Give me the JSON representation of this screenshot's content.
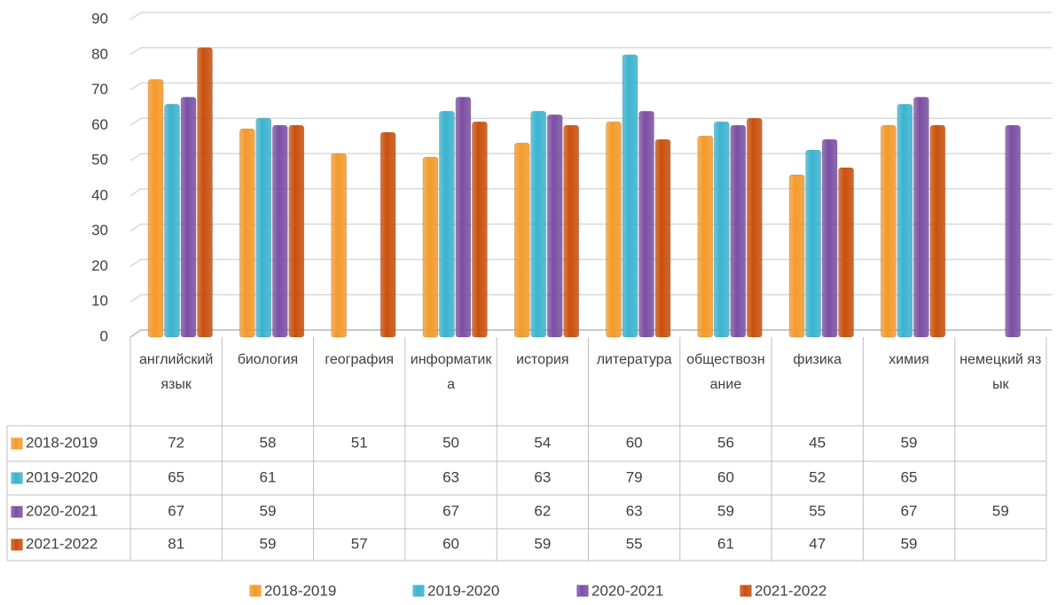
{
  "chart_data": {
    "type": "bar",
    "categories": [
      "английский язык",
      "биология",
      "география",
      "информатика",
      "история",
      "литература",
      "обществознание",
      "физика",
      "химия",
      "немецкий язык"
    ],
    "series": [
      {
        "name": "2018-2019",
        "color": "#f39a2b",
        "values": [
          72,
          58,
          51,
          50,
          54,
          60,
          56,
          45,
          59,
          null
        ]
      },
      {
        "name": "2019-2020",
        "color": "#3bb3d0",
        "values": [
          65,
          61,
          null,
          63,
          63,
          79,
          60,
          52,
          65,
          null
        ]
      },
      {
        "name": "2020-2021",
        "color": "#7b4fa3",
        "values": [
          67,
          59,
          null,
          67,
          62,
          63,
          59,
          55,
          67,
          59
        ]
      },
      {
        "name": "2021-2022",
        "color": "#c9500c",
        "values": [
          81,
          59,
          57,
          60,
          59,
          55,
          61,
          47,
          59,
          null
        ]
      }
    ],
    "ylim": [
      0,
      90
    ],
    "yticks": [
      0,
      10,
      20,
      30,
      40,
      50,
      60,
      70,
      80,
      90
    ],
    "grid": true,
    "legend": "bottom"
  }
}
